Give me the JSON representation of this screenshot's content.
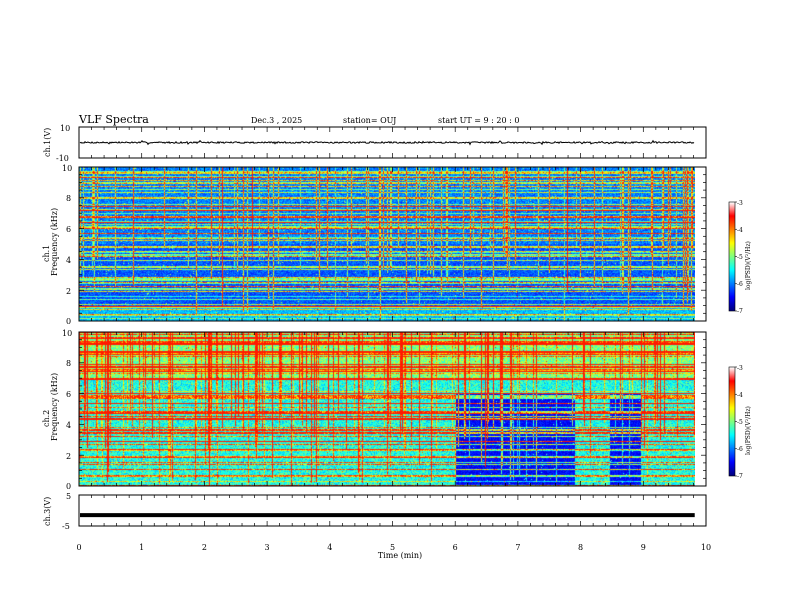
{
  "header": {
    "title": "VLF Spectra",
    "date": "Dec.3 , 2025",
    "station": "station= OUJ",
    "start": "start UT = 9 : 20 : 0"
  },
  "chart_data": [
    {
      "type": "line",
      "name": "ch1-waveform",
      "ylabel": "ch.1(V)",
      "ylim": [
        -10,
        10
      ],
      "yticks": [
        "10",
        "-10"
      ],
      "xlim": [
        0,
        10
      ],
      "trace_level": 0,
      "trace_noise": 0.5,
      "x_end": 9.82,
      "color": "#000000"
    },
    {
      "type": "heatmap",
      "name": "ch1-spectrogram",
      "ylabel": "ch.1",
      "ylabel2": "Frequency (kHz)",
      "ylim": [
        0,
        10
      ],
      "yticks": [
        "0",
        "2",
        "4",
        "6",
        "8",
        "10"
      ],
      "xlim": [
        0,
        10
      ],
      "x_end": 9.82,
      "colorbar": {
        "label": "log(PSD)(V²/Hz)",
        "ticks": [
          "-3",
          "-4",
          "-5",
          "-6",
          "-7"
        ],
        "range": [
          -7,
          -3
        ]
      }
    },
    {
      "type": "heatmap",
      "name": "ch2-spectrogram",
      "ylabel": "ch.2",
      "ylabel2": "Frequency (kHz)",
      "ylim": [
        0,
        10
      ],
      "yticks": [
        "0",
        "2",
        "4",
        "6",
        "8",
        "10"
      ],
      "xlim": [
        0,
        10
      ],
      "x_end": 9.82,
      "quiet_intervals": [
        [
          6.0,
          7.9
        ],
        [
          8.45,
          8.95
        ]
      ],
      "colorbar": {
        "label": "log(PSD)(V²/Hz)",
        "ticks": [
          "-3",
          "-4",
          "-5",
          "-6",
          "-7"
        ],
        "range": [
          -7,
          -3
        ]
      }
    },
    {
      "type": "line",
      "name": "ch3-waveform",
      "ylabel": "ch.3(V)",
      "ylim": [
        -5,
        5
      ],
      "yticks": [
        "5",
        "-5"
      ],
      "xlim": [
        0,
        10
      ],
      "trace_level": -1.5,
      "x_end": 9.82,
      "color": "#000000"
    }
  ],
  "xaxis": {
    "label": "Time (min)",
    "ticks": [
      "0",
      "1",
      "2",
      "3",
      "4",
      "5",
      "6",
      "7",
      "8",
      "9",
      "10"
    ]
  },
  "colormap": [
    "#00007f",
    "#0000ff",
    "#007fff",
    "#00ffff",
    "#7fff7f",
    "#ffff00",
    "#ff7f00",
    "#ff0000",
    "#ffffff"
  ]
}
